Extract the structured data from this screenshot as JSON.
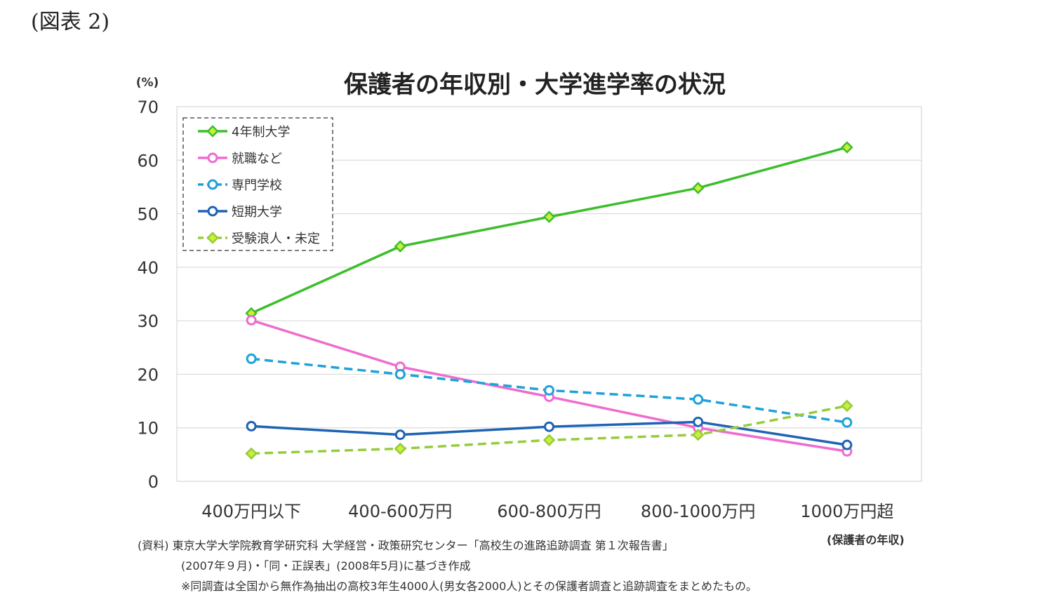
{
  "figure_label": "(図表 2)",
  "chart_data": {
    "type": "line",
    "title": "保護者の年収別・大学進学率の状況",
    "ylabel": "(%)",
    "xlabel": "(保護者の年収)",
    "ylim": [
      0,
      70
    ],
    "yticks": [
      "0",
      "10",
      "20",
      "30",
      "40",
      "50",
      "60",
      "70"
    ],
    "grid": true,
    "legend_position": "top-left",
    "categories": [
      "400万円以下",
      "400-600万円",
      "600-800万円",
      "800-1000万円",
      "1000万円超"
    ],
    "series": [
      {
        "name": "4年制大学",
        "values": [
          31.4,
          43.9,
          49.4,
          54.8,
          62.4
        ],
        "color": "#3cbe2c",
        "dash": false,
        "marker": "diamond"
      },
      {
        "name": "就職など",
        "values": [
          30.1,
          21.4,
          15.8,
          10.0,
          5.6
        ],
        "color": "#ee6ccf",
        "dash": false,
        "marker": "circle"
      },
      {
        "name": "専門学校",
        "values": [
          22.9,
          20.0,
          17.0,
          15.3,
          11.0
        ],
        "color": "#1ea2d9",
        "dash": true,
        "marker": "circle"
      },
      {
        "name": "短期大学",
        "values": [
          10.3,
          8.7,
          10.2,
          11.1,
          6.8
        ],
        "color": "#1e63b4",
        "dash": false,
        "marker": "circle"
      },
      {
        "name": "受験浪人・未定",
        "values": [
          5.2,
          6.1,
          7.7,
          8.7,
          14.1
        ],
        "color": "#96cc3a",
        "dash": true,
        "marker": "diamond"
      }
    ]
  },
  "source": {
    "line1": "(資料) 東京大学大学院教育学研究科 大学経営・政策研究センター「高校生の進路追跡調査 第１次報告書」",
    "line2": "(2007年９月)・「同・正誤表」(2008年5月)に基づき作成",
    "line3": "※同調査は全国から無作為抽出の高校3年生4000人(男女各2000人)とその保護者調査と追跡調査をまとめたもの。"
  }
}
